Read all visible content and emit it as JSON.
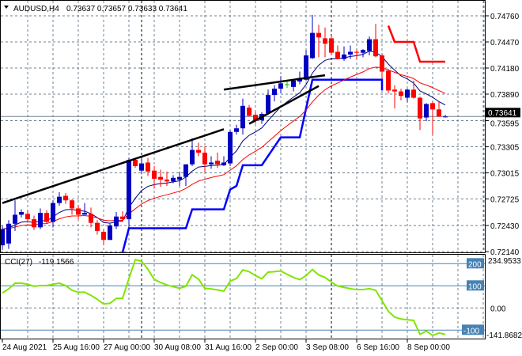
{
  "header": {
    "menu_icon": "triangle-down-icon",
    "symbol": "AUDUSD,H4",
    "ohlc_text": "0.73637 0.73657 0.73633 0.73641"
  },
  "colors": {
    "bull": "#0000C0",
    "bear": "#FF0000",
    "doji": "#00C000",
    "ma_fast": "#000080",
    "ma_slow": "#FF0000",
    "stop_blue": "#0000FF",
    "stop_red": "#FF0000",
    "trend": "#000000",
    "cci": "#7FE600",
    "grid": "#708090",
    "level_box": "#4682B4"
  },
  "chart_data": [
    {
      "type": "candlestick",
      "title": "AUDUSD,H4",
      "ylim": [
        0.7214,
        0.7476
      ],
      "y_ticks": [
        "0.74760",
        "0.74470",
        "0.74180",
        "0.73890",
        "0.73595",
        "0.73305",
        "0.73015",
        "0.72725",
        "0.72430",
        "0.72140"
      ],
      "x_labels": [
        {
          "index": 0,
          "label": "24 Aug 2021"
        },
        {
          "index": 8,
          "label": "25 Aug 16:00"
        },
        {
          "index": 16,
          "label": "27 Aug 00:00"
        },
        {
          "index": 24,
          "label": "30 Aug 08:00"
        },
        {
          "index": 32,
          "label": "31 Aug 16:00"
        },
        {
          "index": 40,
          "label": "2 Sep 00:00"
        },
        {
          "index": 48,
          "label": "3 Sep 08:00"
        },
        {
          "index": 56,
          "label": "6 Sep 16:00"
        },
        {
          "index": 64,
          "label": "8 Sep 00:00"
        }
      ],
      "period_separators": [
        22,
        52
      ],
      "current_price": "0.73641",
      "ohlc": [
        [
          0.7221,
          0.7243,
          0.7216,
          0.7239
        ],
        [
          0.7223,
          0.7249,
          0.7217,
          0.7245
        ],
        [
          0.7245,
          0.7271,
          0.7237,
          0.7255
        ],
        [
          0.7255,
          0.7261,
          0.7252,
          0.7258
        ],
        [
          0.7256,
          0.726,
          0.7246,
          0.725
        ],
        [
          0.725,
          0.7254,
          0.7238,
          0.7241
        ],
        [
          0.7241,
          0.7262,
          0.7239,
          0.7257
        ],
        [
          0.7257,
          0.726,
          0.7245,
          0.7247
        ],
        [
          0.7247,
          0.7271,
          0.7241,
          0.7268
        ],
        [
          0.7268,
          0.728,
          0.7265,
          0.7275
        ],
        [
          0.7276,
          0.7279,
          0.7267,
          0.7271
        ],
        [
          0.7271,
          0.7272,
          0.7255,
          0.7262
        ],
        [
          0.7262,
          0.7266,
          0.725,
          0.7255
        ],
        [
          0.7255,
          0.7268,
          0.7255,
          0.7257
        ],
        [
          0.7256,
          0.7263,
          0.7241,
          0.7246
        ],
        [
          0.7246,
          0.7249,
          0.7233,
          0.7237
        ],
        [
          0.7236,
          0.7239,
          0.7221,
          0.7227
        ],
        [
          0.7227,
          0.7245,
          0.7227,
          0.7243
        ],
        [
          0.7242,
          0.7258,
          0.7239,
          0.7253
        ],
        [
          0.7253,
          0.7259,
          0.7247,
          0.725
        ],
        [
          0.725,
          0.7318,
          0.7239,
          0.7316
        ],
        [
          0.7316,
          0.7318,
          0.7307,
          0.7309
        ],
        [
          0.7304,
          0.7318,
          0.73,
          0.7312
        ],
        [
          0.7313,
          0.7318,
          0.7298,
          0.7303
        ],
        [
          0.7304,
          0.7309,
          0.7284,
          0.7295
        ],
        [
          0.7297,
          0.7305,
          0.7286,
          0.7294
        ],
        [
          0.7294,
          0.7303,
          0.7287,
          0.7292
        ],
        [
          0.7292,
          0.7299,
          0.729,
          0.7296
        ],
        [
          0.7294,
          0.7303,
          0.7287,
          0.7297
        ],
        [
          0.7297,
          0.7311,
          0.7287,
          0.7311
        ],
        [
          0.7311,
          0.734,
          0.7309,
          0.7327
        ],
        [
          0.7327,
          0.7335,
          0.732,
          0.7324
        ],
        [
          0.7324,
          0.7331,
          0.7302,
          0.7311
        ],
        [
          0.7311,
          0.732,
          0.7306,
          0.7313
        ],
        [
          0.7315,
          0.7324,
          0.7307,
          0.7311
        ],
        [
          0.731,
          0.732,
          0.7309,
          0.7313
        ],
        [
          0.7312,
          0.7349,
          0.7309,
          0.7347
        ],
        [
          0.7347,
          0.7355,
          0.7344,
          0.7351
        ],
        [
          0.7351,
          0.7384,
          0.7344,
          0.7376
        ],
        [
          0.7374,
          0.7377,
          0.7364,
          0.7365
        ],
        [
          0.7366,
          0.7369,
          0.7356,
          0.736
        ],
        [
          0.736,
          0.7369,
          0.7356,
          0.7367
        ],
        [
          0.7368,
          0.7394,
          0.7366,
          0.7388
        ],
        [
          0.7388,
          0.7399,
          0.7381,
          0.7395
        ],
        [
          0.7395,
          0.7409,
          0.739,
          0.7401
        ],
        [
          0.74,
          0.7403,
          0.7396,
          0.74
        ],
        [
          0.7397,
          0.7406,
          0.7392,
          0.7404
        ],
        [
          0.7403,
          0.7414,
          0.74,
          0.7407
        ],
        [
          0.7405,
          0.7438,
          0.7404,
          0.7432
        ],
        [
          0.7429,
          0.7477,
          0.7428,
          0.7457
        ],
        [
          0.7457,
          0.7466,
          0.743,
          0.7452
        ],
        [
          0.7451,
          0.7463,
          0.743,
          0.7445
        ],
        [
          0.7451,
          0.7454,
          0.7432,
          0.7435
        ],
        [
          0.7436,
          0.7443,
          0.7428,
          0.7428
        ],
        [
          0.7428,
          0.7442,
          0.7426,
          0.7433
        ],
        [
          0.7433,
          0.7443,
          0.7428,
          0.7436
        ],
        [
          0.7436,
          0.7439,
          0.7428,
          0.7435
        ],
        [
          0.7435,
          0.7439,
          0.743,
          0.7438
        ],
        [
          0.7437,
          0.7453,
          0.7432,
          0.745
        ],
        [
          0.745,
          0.7467,
          0.743,
          0.7431
        ],
        [
          0.7432,
          0.7434,
          0.7406,
          0.7414
        ],
        [
          0.7415,
          0.7417,
          0.739,
          0.7393
        ],
        [
          0.7394,
          0.7399,
          0.7373,
          0.7392
        ],
        [
          0.7392,
          0.7395,
          0.7382,
          0.7387
        ],
        [
          0.7385,
          0.7395,
          0.738,
          0.7394
        ],
        [
          0.7394,
          0.7404,
          0.7384,
          0.7385
        ],
        [
          0.7385,
          0.7386,
          0.7349,
          0.7362
        ],
        [
          0.7363,
          0.7379,
          0.7359,
          0.7378
        ],
        [
          0.7379,
          0.7381,
          0.7344,
          0.7372
        ],
        [
          0.7372,
          0.7381,
          0.7364,
          0.7364
        ],
        [
          0.7364,
          0.7366,
          0.7363,
          0.73641
        ]
      ],
      "stop_blue": [
        [
          19,
          0.7212
        ],
        [
          20,
          0.724
        ],
        [
          29,
          0.724
        ],
        [
          30,
          0.7261
        ],
        [
          35,
          0.7261
        ],
        [
          36,
          0.7283
        ],
        [
          37,
          0.7287
        ],
        [
          38,
          0.731
        ],
        [
          41,
          0.731
        ],
        [
          44,
          0.7341
        ],
        [
          47,
          0.7341
        ],
        [
          49,
          0.7405
        ],
        [
          60,
          0.7405
        ],
        [
          60,
          0.7393
        ]
      ],
      "stop_red": [
        [
          61,
          0.7465
        ],
        [
          62,
          0.7447
        ],
        [
          65,
          0.7447
        ],
        [
          66,
          0.7425
        ],
        [
          70,
          0.7425
        ]
      ],
      "trendlines": [
        [
          [
            0,
            0.7268
          ],
          [
            35,
            0.735
          ]
        ],
        [
          [
            35,
            0.7394
          ],
          [
            51,
            0.741
          ]
        ],
        [
          [
            39,
            0.7356
          ],
          [
            50,
            0.7398
          ]
        ]
      ]
    },
    {
      "type": "line",
      "title": "CCI(27)",
      "last_value": "-119.1566",
      "ylim": [
        -141.8682,
        234.9533
      ],
      "max_label": "234.9533",
      "min_label": "-141.8682",
      "levels": [
        "200",
        "100",
        "-100"
      ],
      "zero_label": "0.00",
      "values": [
        68,
        86,
        112,
        112,
        107,
        98,
        101,
        101,
        107,
        112,
        101,
        80,
        71,
        71,
        57,
        39,
        18,
        21,
        43,
        44,
        133,
        218,
        211,
        175,
        129,
        115,
        104,
        96,
        89,
        98,
        150,
        130,
        89,
        86,
        82,
        76,
        121,
        133,
        172,
        164,
        146,
        132,
        162,
        164,
        167,
        152,
        138,
        128,
        146,
        174,
        149,
        138,
        117,
        99,
        93,
        87,
        83,
        83,
        87,
        80,
        33,
        -15,
        -41,
        -50,
        -53,
        -56,
        -119,
        -104,
        -124,
        -113,
        -119.1566
      ]
    }
  ]
}
